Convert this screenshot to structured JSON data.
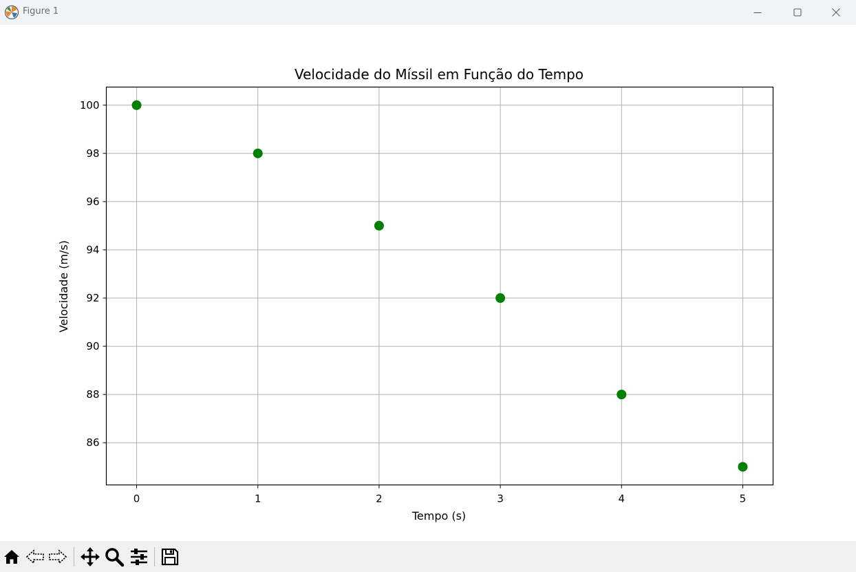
{
  "window": {
    "title": "Figure 1",
    "buttons": {
      "minimize": "minimize-icon",
      "maximize": "maximize-icon",
      "close": "close-icon"
    }
  },
  "toolbar": {
    "tools": [
      "home-icon",
      "back-icon",
      "forward-icon",
      "pan-icon",
      "zoom-icon",
      "configure-subplots-icon",
      "save-icon"
    ]
  },
  "chart_data": {
    "type": "scatter",
    "title": "Velocidade do Míssil em Função do Tempo",
    "xlabel": "Tempo (s)",
    "ylabel": "Velocidade (m/s)",
    "x": [
      0,
      1,
      2,
      3,
      4,
      5
    ],
    "y": [
      100,
      98,
      95,
      92,
      88,
      85
    ],
    "xlim": [
      -0.25,
      5.25
    ],
    "ylim": [
      84.25,
      100.75
    ],
    "xticks": [
      0,
      1,
      2,
      3,
      4,
      5
    ],
    "yticks": [
      86,
      88,
      90,
      92,
      94,
      96,
      98,
      100
    ],
    "grid": true,
    "marker_color": "#008000",
    "grid_color": "#b0b0b0"
  }
}
